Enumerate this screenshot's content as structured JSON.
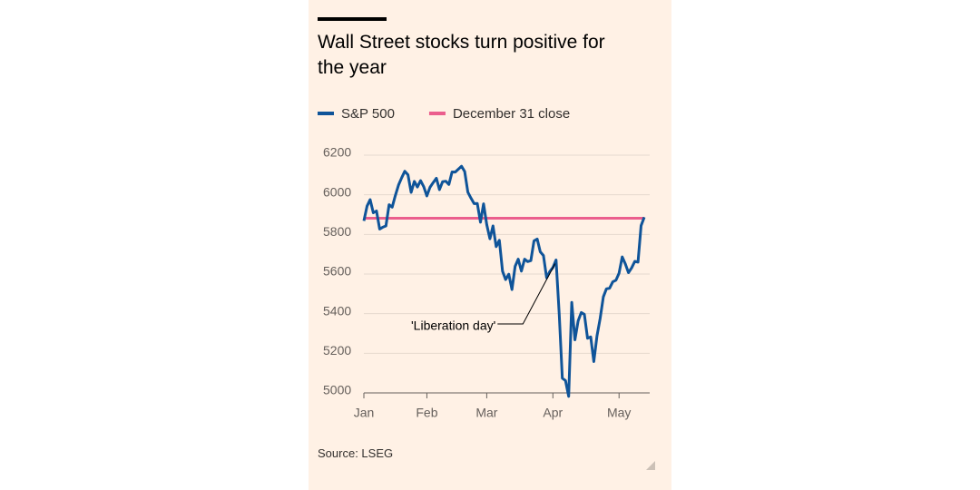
{
  "chart_data": {
    "type": "line",
    "title": "Wall Street stocks turn positive for the year",
    "source": "Source: LSEG",
    "categories": [
      "Jan",
      null,
      null,
      null,
      null,
      null,
      null,
      null,
      null,
      null,
      null,
      null,
      null,
      null,
      null,
      null,
      null,
      null,
      null,
      null,
      "Feb",
      null,
      null,
      null,
      null,
      null,
      null,
      null,
      null,
      null,
      null,
      null,
      null,
      null,
      null,
      null,
      null,
      null,
      null,
      "Mar",
      null,
      null,
      null,
      null,
      null,
      null,
      null,
      null,
      null,
      null,
      null,
      null,
      null,
      null,
      null,
      null,
      null,
      null,
      null,
      null,
      "Apr",
      null,
      null,
      null,
      null,
      null,
      null,
      null,
      null,
      null,
      null,
      null,
      null,
      null,
      null,
      null,
      null,
      null,
      null,
      null,
      null,
      "May",
      null,
      null,
      null,
      null,
      null,
      null,
      null,
      null
    ],
    "series": [
      {
        "name": "S&P 500",
        "color": "#0f5499",
        "values": [
          5868.55,
          5942.47,
          5975.38,
          5909.03,
          5918.25,
          5827.04,
          5836.22,
          5842.91,
          5949.91,
          5937.34,
          5996.66,
          6049.24,
          6086.37,
          6118.71,
          6101.24,
          6012.28,
          6067.7,
          6039.31,
          6071.17,
          6040.53,
          5994.57,
          6037.88,
          6061.48,
          6083.57,
          6025.99,
          6066.44,
          6068.5,
          6051.97,
          6115.07,
          6114.63,
          6129.58,
          6144.15,
          6117.52,
          6013.13,
          5983.25,
          5955.25,
          5956.06,
          5861.57,
          5954.5,
          5849.72,
          5778.15,
          5842.63,
          5738.52,
          5770.2,
          5614.56,
          5572.07,
          5599.3,
          5521.52,
          5638.94,
          5675.12,
          5614.66,
          5675.29,
          5662.89,
          5667.56,
          5767.57,
          5776.65,
          5712.2,
          5693.31,
          5580.94,
          5611.85,
          5633.07,
          5670.97,
          5396.52,
          5074.08,
          5062.25,
          4982.77,
          5456.9,
          5268.05,
          5363.36,
          5405.97,
          5396.63,
          5275.7,
          5282.7,
          5158.2,
          5287.76,
          5375.86,
          5484.77,
          5525.21,
          5528.75,
          5560.83,
          5569.06,
          5604.14,
          5686.67,
          5650.38,
          5606.91,
          5631.28,
          5663.94,
          5659.91,
          5844.19,
          5886.55
        ]
      }
    ],
    "reference_line": {
      "name": "December 31 close",
      "color": "#eb5e8d",
      "value": 5881.63
    },
    "annotation": {
      "text": "'Liberation day'",
      "index": 61
    },
    "ylim": [
      4980,
      6200
    ],
    "yticks": [
      5000,
      5200,
      5400,
      5600,
      5800,
      6000,
      6200
    ],
    "grid": true
  }
}
